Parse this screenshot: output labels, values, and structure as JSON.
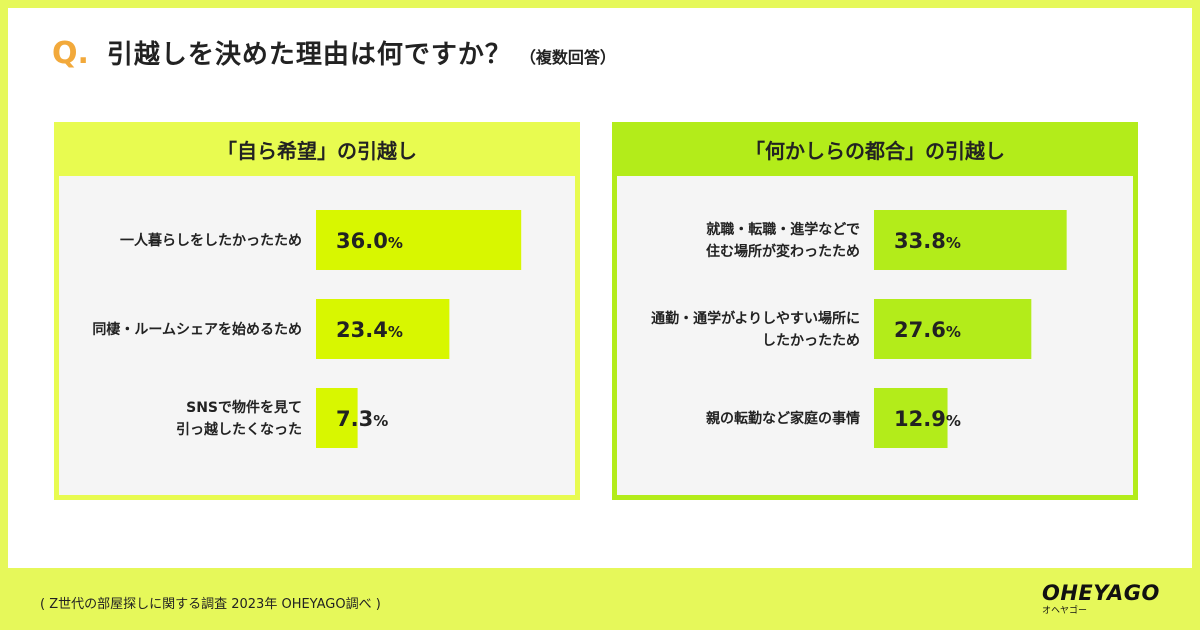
{
  "question": {
    "mark": "Q.",
    "text": "引越しを決めた理由は何ですか？",
    "note": "（複数回答）"
  },
  "chart_data": [
    {
      "type": "bar",
      "title": "「自ら希望」の引越し",
      "orientation": "horizontal",
      "categories": [
        [
          "一人暮らしをしたかったため"
        ],
        [
          "同棲・ルームシェアを始めるため"
        ],
        [
          "SNSで物件を見て",
          "引っ越したくなった"
        ]
      ],
      "values": [
        36.0,
        23.4,
        7.3
      ],
      "value_labels": [
        "36.0",
        "23.4",
        "7.3"
      ],
      "unit": "%",
      "xlim": [
        0,
        40
      ],
      "bar_color": "#d8f700"
    },
    {
      "type": "bar",
      "title": "「何かしらの都合」の引越し",
      "orientation": "horizontal",
      "categories": [
        [
          "就職・転職・進学などで",
          "住む場所が変わったため"
        ],
        [
          "通勤・通学がよりしやすい場所に",
          "したかったため"
        ],
        [
          "親の転勤など家庭の事情"
        ]
      ],
      "values": [
        33.8,
        27.6,
        12.9
      ],
      "value_labels": [
        "33.8",
        "27.6",
        "12.9"
      ],
      "unit": "%",
      "xlim": [
        0,
        40
      ],
      "bar_color": "#b3ec1a"
    }
  ],
  "footer": {
    "source": "( Z世代の部屋探しに関する調査 2023年 OHEYAGO調べ )"
  },
  "logo": {
    "main": "OHEYAGO",
    "sub": "オヘヤゴー"
  }
}
